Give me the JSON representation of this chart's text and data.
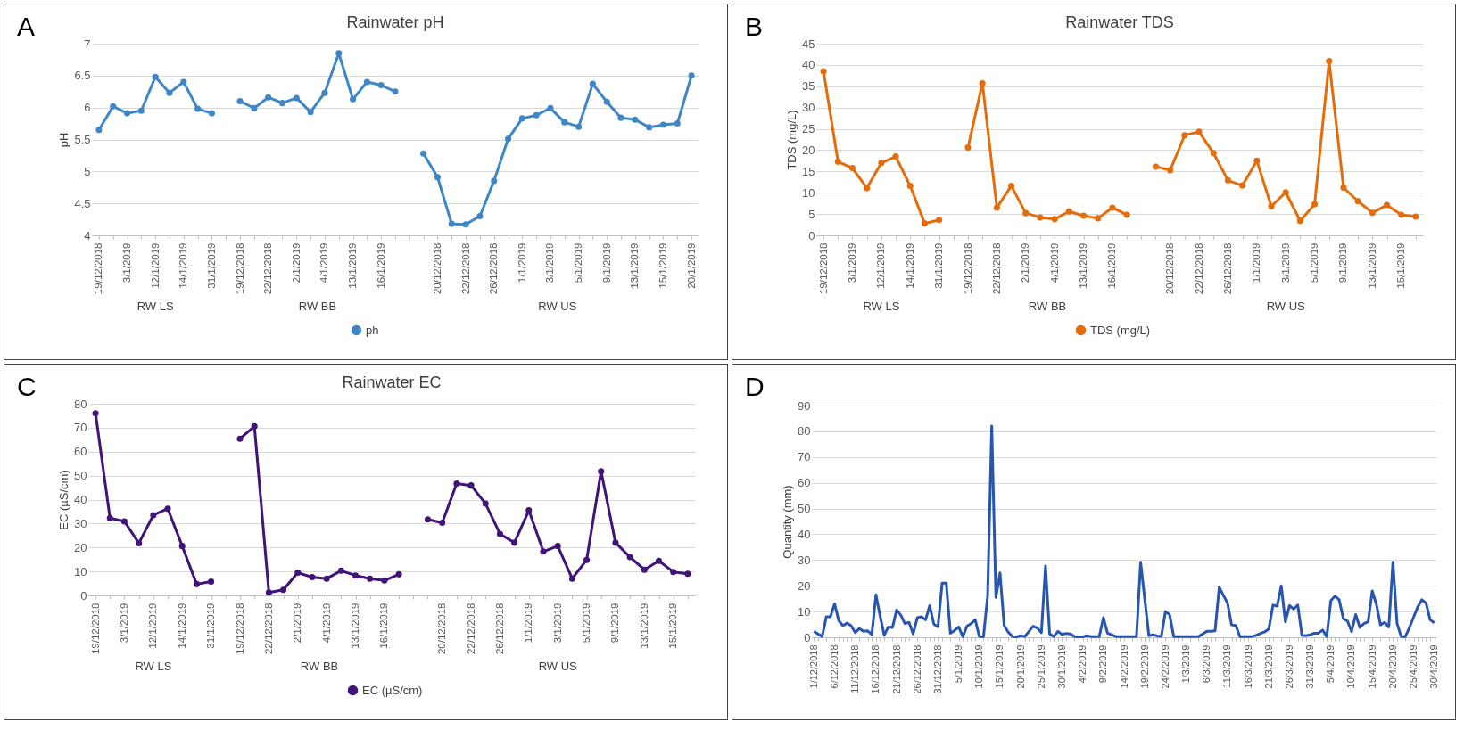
{
  "chart_data": [
    {
      "type": "line",
      "title": "Rainwater pH",
      "ylabel": "pH",
      "legend": "bottom",
      "grid": "y",
      "marker": "circle",
      "annotations": [
        "A",
        "RW LS",
        "RW BB",
        "RW US"
      ],
      "categories": [
        "19/12/2018",
        null,
        "3/1/2019",
        null,
        "12/1/2019",
        null,
        "14/1/2019",
        null,
        "31/1/2019",
        null,
        "19/12/2018",
        null,
        "22/12/2018",
        null,
        "2/1/2019",
        null,
        "4/1/2019",
        null,
        "13/1/2019",
        null,
        "16/1/2019",
        null,
        null,
        null,
        "20/12/2018",
        null,
        "22/12/2018",
        null,
        "26/12/2018",
        null,
        "1/1/2019",
        null,
        "3/1/2019",
        null,
        "5/1/2019",
        null,
        "9/1/2019",
        null,
        "13/1/2019",
        null,
        "15/1/2019",
        null,
        "20/1/2019"
      ],
      "ylim": [
        4,
        7
      ],
      "yticks": [
        4,
        4.5,
        5,
        5.5,
        6,
        6.5,
        7
      ],
      "series": [
        {
          "name": "ph",
          "color": "#3f86c6",
          "values": [
            5.65,
            6.02,
            5.91,
            5.95,
            6.48,
            6.23,
            6.4,
            5.98,
            5.91,
            null,
            6.1,
            5.99,
            6.16,
            6.07,
            6.15,
            5.93,
            6.23,
            6.85,
            6.13,
            6.4,
            6.35,
            6.25,
            null,
            5.28,
            4.91,
            4.18,
            4.17,
            4.3,
            4.85,
            5.51,
            5.83,
            5.88,
            5.99,
            5.77,
            5.7,
            6.37,
            6.09,
            5.84,
            5.81,
            5.69,
            5.73,
            5.75,
            6.5
          ]
        }
      ]
    },
    {
      "type": "line",
      "title": "Rainwater TDS",
      "ylabel": "TDS (mg/L)",
      "legend": "bottom",
      "grid": "y",
      "marker": "circle",
      "annotations": [
        "B",
        "RW LS",
        "RW BB",
        "RW US"
      ],
      "categories": [
        "19/12/2018",
        null,
        "3/1/2019",
        null,
        "12/1/2019",
        null,
        "14/1/2019",
        null,
        "31/1/2019",
        null,
        "19/12/2018",
        null,
        "22/12/2018",
        null,
        "2/1/2019",
        null,
        "4/1/2019",
        null,
        "13/1/2019",
        null,
        "16/1/2019",
        null,
        null,
        null,
        "20/12/2018",
        null,
        "22/12/2018",
        null,
        "26/12/2018",
        null,
        "1/1/2019",
        null,
        "3/1/2019",
        null,
        "5/1/2019",
        null,
        "9/1/2019",
        null,
        "13/1/2019",
        null,
        "15/1/2019",
        null
      ],
      "ylim": [
        0,
        45
      ],
      "yticks": [
        0,
        5,
        10,
        15,
        20,
        25,
        30,
        35,
        40,
        45
      ],
      "series": [
        {
          "name": "TDS (mg/L)",
          "color": "#e46c0a",
          "values": [
            38.5,
            17.3,
            15.8,
            11.1,
            17.0,
            18.5,
            11.6,
            2.8,
            3.6,
            null,
            20.6,
            35.7,
            6.5,
            11.6,
            5.2,
            4.2,
            3.8,
            5.6,
            4.6,
            4.0,
            6.5,
            4.8,
            null,
            16.1,
            15.3,
            23.5,
            24.3,
            19.3,
            12.9,
            11.7,
            17.5,
            6.8,
            10.1,
            3.4,
            7.3,
            40.9,
            11.2,
            8.0,
            5.3,
            7.1,
            4.8,
            4.4
          ]
        }
      ]
    },
    {
      "type": "line",
      "title": "Rainwater EC",
      "ylabel": "EC (µS/cm)",
      "legend": "bottom",
      "grid": "y",
      "marker": "circle",
      "annotations": [
        "C",
        "RW LS",
        "RW BB",
        "RW US"
      ],
      "categories": [
        "19/12/2018",
        null,
        "3/1/2019",
        null,
        "12/1/2019",
        null,
        "14/1/2019",
        null,
        "31/1/2019",
        null,
        "19/12/2018",
        null,
        "22/12/2018",
        null,
        "2/1/2019",
        null,
        "4/1/2019",
        null,
        "13/1/2019",
        null,
        "16/1/2019",
        null,
        null,
        null,
        "20/12/2018",
        null,
        "22/12/2018",
        null,
        "26/12/2018",
        null,
        "1/1/2019",
        null,
        "3/1/2019",
        null,
        "5/1/2019",
        null,
        "9/1/2019",
        null,
        "13/1/2019",
        null,
        "15/1/2019",
        null
      ],
      "ylim": [
        0,
        80
      ],
      "yticks": [
        0,
        10,
        20,
        30,
        40,
        50,
        60,
        70,
        80
      ],
      "series": [
        {
          "name": "EC (µS/cm)",
          "color": "#401478",
          "values": [
            76,
            32.3,
            30.9,
            21.8,
            33.5,
            36.2,
            20.6,
            4.7,
            5.8,
            null,
            65.4,
            70.6,
            1.2,
            2.3,
            9.5,
            7.6,
            7.0,
            10.3,
            8.3,
            7.0,
            6.2,
            8.8,
            null,
            31.7,
            30.3,
            46.7,
            45.9,
            38.3,
            25.7,
            22.0,
            35.5,
            18.3,
            20.6,
            7.0,
            14.8,
            51.8,
            22.0,
            16.0,
            10.7,
            14.4,
            9.8,
            9.0
          ]
        }
      ]
    },
    {
      "type": "line",
      "ylabel": "Quantity (mm)",
      "grid": "y",
      "annotations": [
        "D"
      ],
      "categories": [
        "1/12/2018",
        null,
        null,
        null,
        null,
        "6/12/2018",
        null,
        null,
        null,
        null,
        "11/12/2018",
        null,
        null,
        null,
        null,
        "16/12/2018",
        null,
        null,
        null,
        null,
        "21/12/2018",
        null,
        null,
        null,
        null,
        "26/12/2018",
        null,
        null,
        null,
        null,
        "31/12/2018",
        null,
        null,
        null,
        null,
        "5/1/2019",
        null,
        null,
        null,
        null,
        "10/1/2019",
        null,
        null,
        null,
        null,
        "15/1/2019",
        null,
        null,
        null,
        null,
        "20/1/2019",
        null,
        null,
        null,
        null,
        "25/1/2019",
        null,
        null,
        null,
        null,
        "30/1/2019",
        null,
        null,
        null,
        null,
        "4/2/2019",
        null,
        null,
        null,
        null,
        "9/2/2019",
        null,
        null,
        null,
        null,
        "14/2/2019",
        null,
        null,
        null,
        null,
        "19/2/2019",
        null,
        null,
        null,
        null,
        "24/2/2019",
        null,
        null,
        null,
        null,
        "1/3/2019",
        null,
        null,
        null,
        null,
        "6/3/2019",
        null,
        null,
        null,
        null,
        "11/3/2019",
        null,
        null,
        null,
        null,
        "16/3/2019",
        null,
        null,
        null,
        null,
        "21/3/2019",
        null,
        null,
        null,
        null,
        "26/3/2019",
        null,
        null,
        null,
        null,
        "31/3/2019",
        null,
        null,
        null,
        null,
        "5/4/2019",
        null,
        null,
        null,
        null,
        "10/4/2019",
        null,
        null,
        null,
        null,
        "15/4/2019",
        null,
        null,
        null,
        null,
        "20/4/2019",
        null,
        null,
        null,
        null,
        "25/4/2019",
        null,
        null,
        null,
        null,
        "30/4/2019"
      ],
      "ylim": [
        0,
        90
      ],
      "yticks": [
        0,
        10,
        20,
        30,
        40,
        50,
        60,
        70,
        80,
        90
      ],
      "series": [
        {
          "color": "#2755b0",
          "values": [
            2.3,
            1.3,
            0.3,
            8,
            8,
            13,
            6.5,
            4.5,
            5.5,
            4.5,
            1.8,
            3.4,
            2.3,
            2.5,
            1.1,
            16.5,
            8.3,
            0.8,
            4,
            3.8,
            10.6,
            8.6,
            5.3,
            5.8,
            1.3,
            7.6,
            8,
            6.8,
            12.3,
            5.1,
            4.1,
            21,
            21,
            1.6,
            2.6,
            4,
            0.3,
            4.3,
            5.3,
            6.8,
            0.3,
            0.2,
            16,
            82,
            15.5,
            25,
            4.5,
            2,
            0.3,
            0.2,
            0.6,
            0.3,
            2.3,
            4.3,
            3.6,
            1.8,
            27.7,
            1.3,
            0.3,
            2.3,
            1.1,
            1.5,
            1.3,
            0.3,
            0.2,
            0.2,
            0.6,
            0.3,
            0.3,
            0.3,
            7.6,
            1.6,
            1,
            0.3,
            0.3,
            0.3,
            0.3,
            0.3,
            0.3,
            29.2,
            14.8,
            0.6,
            1,
            0.5,
            0.3,
            10,
            8.8,
            0.3,
            0.3,
            0.3,
            0.3,
            0.3,
            0.3,
            0.3,
            1.3,
            2.3,
            2.3,
            2.5,
            19.5,
            16.3,
            13.3,
            4.8,
            4.6,
            0.3,
            0.3,
            0.3,
            0.3,
            0.8,
            1.5,
            2.1,
            3.3,
            12.5,
            12.1,
            20,
            6,
            12.3,
            11,
            12.5,
            0.8,
            0.6,
            1,
            1.6,
            1.6,
            2.8,
            0.3,
            14.3,
            16,
            14.6,
            7.3,
            6.3,
            2.3,
            8.8,
            3.8,
            5.3,
            6,
            18,
            12.8,
            4.8,
            5.8,
            4,
            29.2,
            5.3,
            0.3,
            0.3,
            3.8,
            7.8,
            11.8,
            14.6,
            13.3,
            6.8,
            5.6
          ]
        }
      ]
    }
  ]
}
